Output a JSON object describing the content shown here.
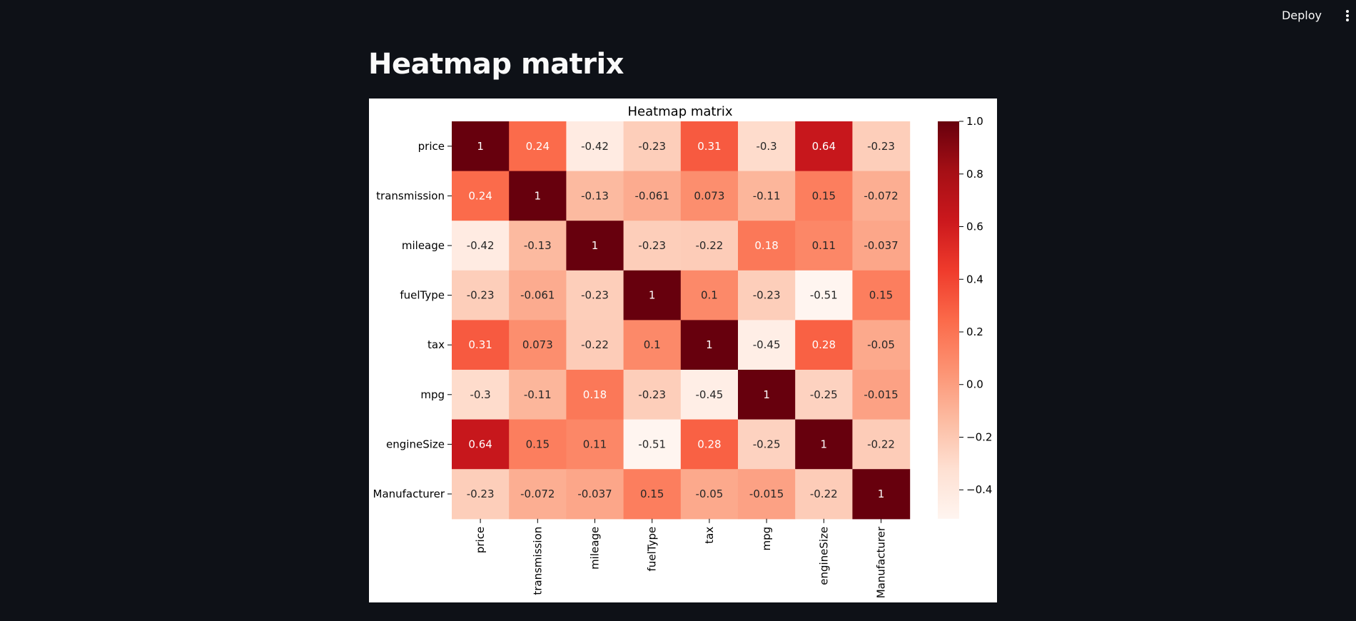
{
  "app": {
    "deploy_label": "Deploy",
    "menu_icon": "kebab-menu-icon"
  },
  "page": {
    "title": "Heatmap matrix"
  },
  "chart_data": {
    "type": "heatmap",
    "title": "Heatmap matrix",
    "xlabel": "",
    "ylabel": "",
    "rows": [
      "price",
      "transmission",
      "mileage",
      "fuelType",
      "tax",
      "mpg",
      "engineSize",
      "Manufacturer"
    ],
    "columns": [
      "price",
      "transmission",
      "mileage",
      "fuelType",
      "tax",
      "mpg",
      "engineSize",
      "Manufacturer"
    ],
    "values": [
      [
        1,
        0.24,
        -0.42,
        -0.23,
        0.31,
        -0.3,
        0.64,
        -0.23
      ],
      [
        0.24,
        1,
        -0.13,
        -0.061,
        0.073,
        -0.11,
        0.15,
        -0.072
      ],
      [
        -0.42,
        -0.13,
        1,
        -0.23,
        -0.22,
        0.18,
        0.11,
        -0.037
      ],
      [
        -0.23,
        -0.061,
        -0.23,
        1,
        0.1,
        -0.23,
        -0.51,
        0.15
      ],
      [
        0.31,
        0.073,
        -0.22,
        0.1,
        1,
        -0.45,
        0.28,
        -0.05
      ],
      [
        -0.3,
        -0.11,
        0.18,
        -0.23,
        -0.45,
        1,
        -0.25,
        -0.015
      ],
      [
        0.64,
        0.15,
        0.11,
        -0.51,
        0.28,
        -0.25,
        1,
        -0.22
      ],
      [
        -0.23,
        -0.072,
        -0.037,
        0.15,
        -0.05,
        -0.015,
        -0.22,
        1
      ]
    ],
    "colormap": "Reds",
    "colorbar": {
      "vmin": -0.51,
      "vmax": 1.0,
      "ticks": [
        1.0,
        0.8,
        0.6,
        0.4,
        0.2,
        0.0,
        -0.2,
        -0.4
      ],
      "tick_labels": [
        "1.0",
        "0.8",
        "0.6",
        "0.4",
        "0.2",
        "0.0",
        "−0.2",
        "−0.4"
      ]
    },
    "annotate": true,
    "grid": false,
    "legend": "colorbar right"
  }
}
